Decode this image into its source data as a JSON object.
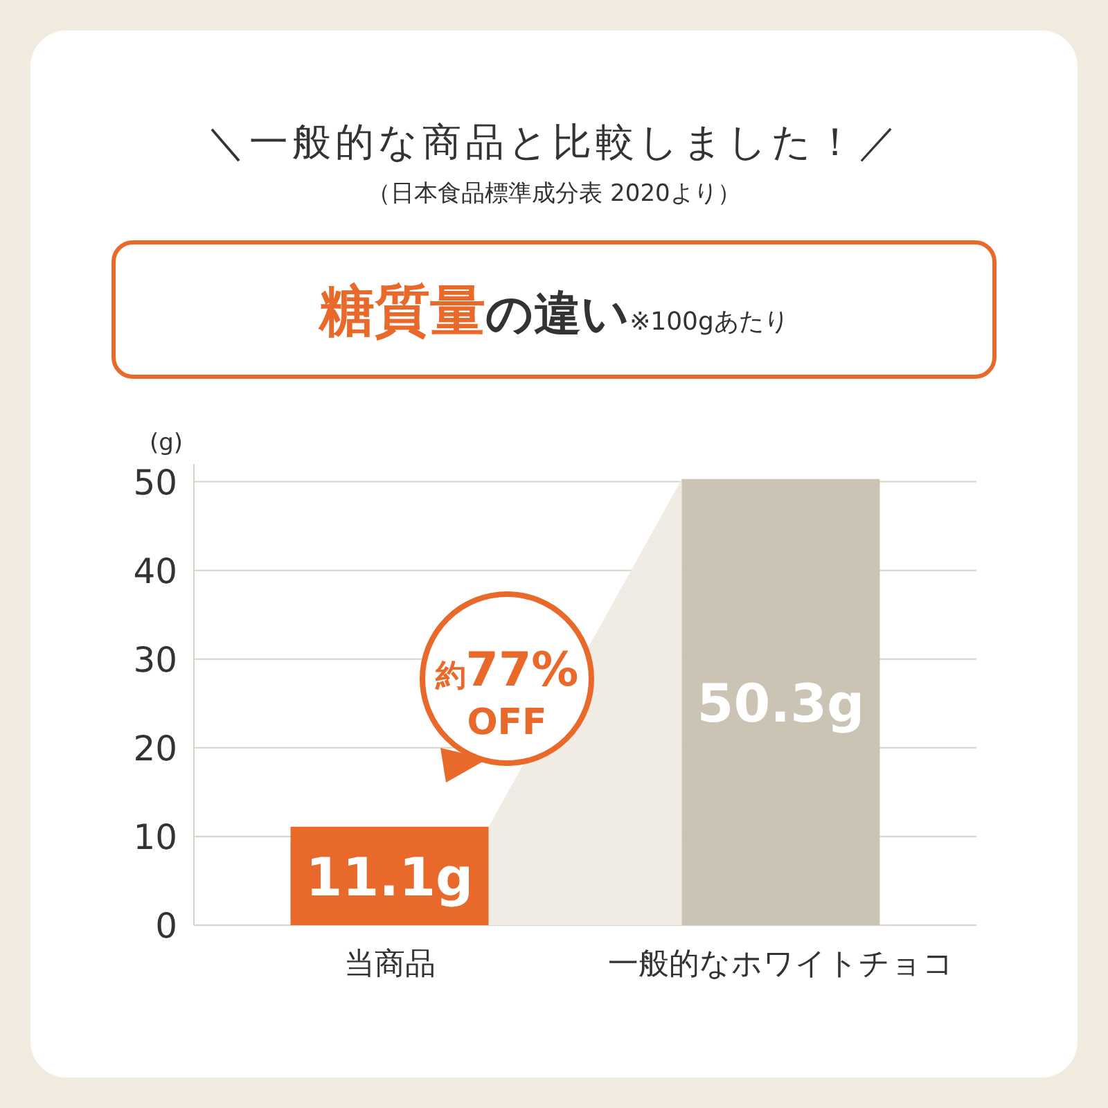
{
  "chart_data": {
    "type": "bar",
    "title": "＼一般的な商品と比較しました！／",
    "subtitle": "（日本食品標準成分表 2020より）",
    "annotations": [
      "糖質量",
      "の違い",
      "※100gあたり",
      "約",
      "77%",
      "OFF"
    ],
    "ylabel": "(g)",
    "categories": [
      "当商品",
      "一般的なホワイトチョコ"
    ],
    "values": [
      11.1,
      50.3
    ],
    "colors": [
      "#e8692a",
      "#cbc3b4"
    ],
    "value_labels": [
      "11.1g",
      "50.3g"
    ],
    "ylim": [
      0,
      52
    ],
    "yticks": [
      0,
      10,
      20,
      30,
      40,
      50
    ],
    "grid": "y"
  }
}
